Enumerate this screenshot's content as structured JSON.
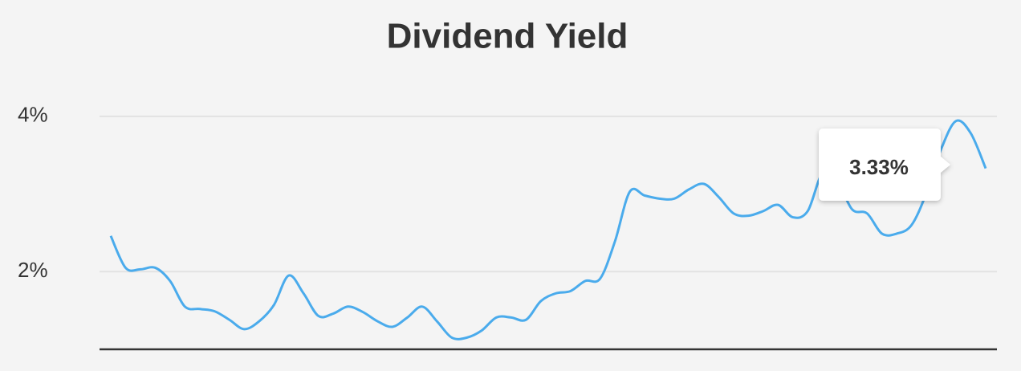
{
  "chart_data": {
    "type": "line",
    "title": "Dividend Yield",
    "values": [
      2.46,
      2.05,
      2.03,
      2.05,
      1.88,
      1.55,
      1.52,
      1.49,
      1.38,
      1.26,
      1.36,
      1.57,
      1.95,
      1.72,
      1.43,
      1.46,
      1.55,
      1.48,
      1.36,
      1.29,
      1.41,
      1.55,
      1.36,
      1.15,
      1.15,
      1.24,
      1.41,
      1.41,
      1.38,
      1.62,
      1.72,
      1.75,
      1.88,
      1.91,
      2.39,
      3.03,
      2.98,
      2.94,
      2.94,
      3.06,
      3.13,
      2.96,
      2.75,
      2.72,
      2.78,
      2.86,
      2.7,
      2.78,
      3.27,
      3.16,
      2.8,
      2.75,
      2.49,
      2.49,
      2.6,
      3.01,
      3.58,
      3.94,
      3.78,
      3.33
    ],
    "color": "#4aabec",
    "ylim": [
      1,
      4.5
    ],
    "yticks": [
      {
        "value": 2,
        "label": "2%"
      },
      {
        "value": 4,
        "label": "4%"
      }
    ],
    "grid": true,
    "annotation": "3.33%"
  }
}
